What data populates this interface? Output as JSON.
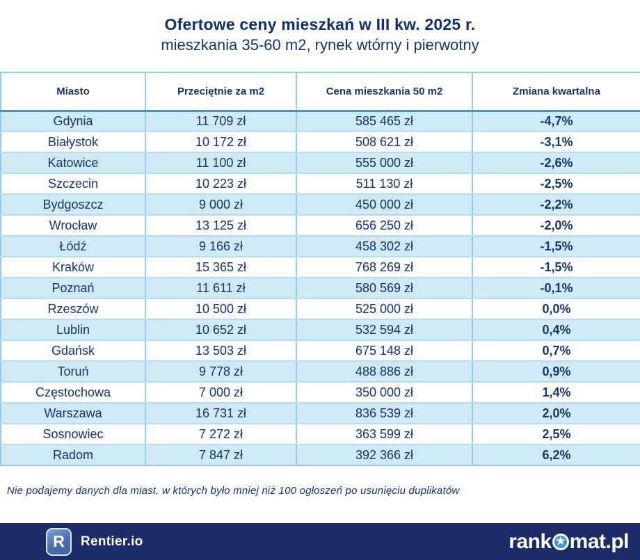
{
  "header": {
    "title": "Ofertowe ceny mieszkań w III kw. 2025 r.",
    "subtitle": "mieszkania 35-60 m2, rynek wtórny i pierwotny"
  },
  "chart_data": {
    "type": "table",
    "title": "Ofertowe ceny mieszkań w III kw. 2025 r.",
    "subtitle": "mieszkania 35-60 m2, rynek wtórny i pierwotny",
    "columns": [
      "Miasto",
      "Przeciętnie za m2",
      "Cena mieszkania 50 m2",
      "Zmiana kwartalna"
    ],
    "rows": [
      [
        "Gdynia",
        "11 709 zł",
        "585 465 zł",
        "-4,7%"
      ],
      [
        "Białystok",
        "10 172 zł",
        "508 621 zł",
        "-3,1%"
      ],
      [
        "Katowice",
        "11 100 zł",
        "555 000 zł",
        "-2,6%"
      ],
      [
        "Szczecin",
        "10 223 zł",
        "511 130 zł",
        "-2,5%"
      ],
      [
        "Bydgoszcz",
        "9 000 zł",
        "450 000 zł",
        "-2,2%"
      ],
      [
        "Wrocław",
        "13 125 zł",
        "656 250 zł",
        "-2,0%"
      ],
      [
        "Łódź",
        "9 166 zł",
        "458 302 zł",
        "-1,5%"
      ],
      [
        "Kraków",
        "15 365 zł",
        "768 269 zł",
        "-1,5%"
      ],
      [
        "Poznań",
        "11 611 zł",
        "580 569 zł",
        "-0,1%"
      ],
      [
        "Rzeszów",
        "10 500 zł",
        "525 000 zł",
        "0,0%"
      ],
      [
        "Lublin",
        "10 652 zł",
        "532 594 zł",
        "0,4%"
      ],
      [
        "Gdańsk",
        "13 503 zł",
        "675 148 zł",
        "0,7%"
      ],
      [
        "Toruń",
        "9 778 zł",
        "488 886 zł",
        "0,9%"
      ],
      [
        "Częstochowa",
        "7 000 zł",
        "350 000 zł",
        "1,4%"
      ],
      [
        "Warszawa",
        "16 731 zł",
        "836 539 zł",
        "2,0%"
      ],
      [
        "Sosnowiec",
        "7 272 zł",
        "363 599 zł",
        "2,5%"
      ],
      [
        "Radom",
        "7 847 zł",
        "392 366 zł",
        "6,2%"
      ]
    ]
  },
  "footnote": "Nie podajemy danych dla miast, w których było mniej niż 100 ogłoszeń po usunięciu duplikatów",
  "footer": {
    "rentier_badge_letter": "R",
    "rentier_label": "Rentier.io",
    "rankomat_prefix": "rank",
    "rankomat_suffix": "mat.pl",
    "rankomat_star": "★"
  },
  "colors": {
    "navy_text": "#14366e",
    "title_navy": "#122f6b",
    "row_light_blue": "#cfe9f7",
    "grid_blue": "#93cce8",
    "header_separator_blue": "#4796bd",
    "bottom_bar_navy": "#1b2c69",
    "star_circle_blue": "#3e9ad8"
  }
}
